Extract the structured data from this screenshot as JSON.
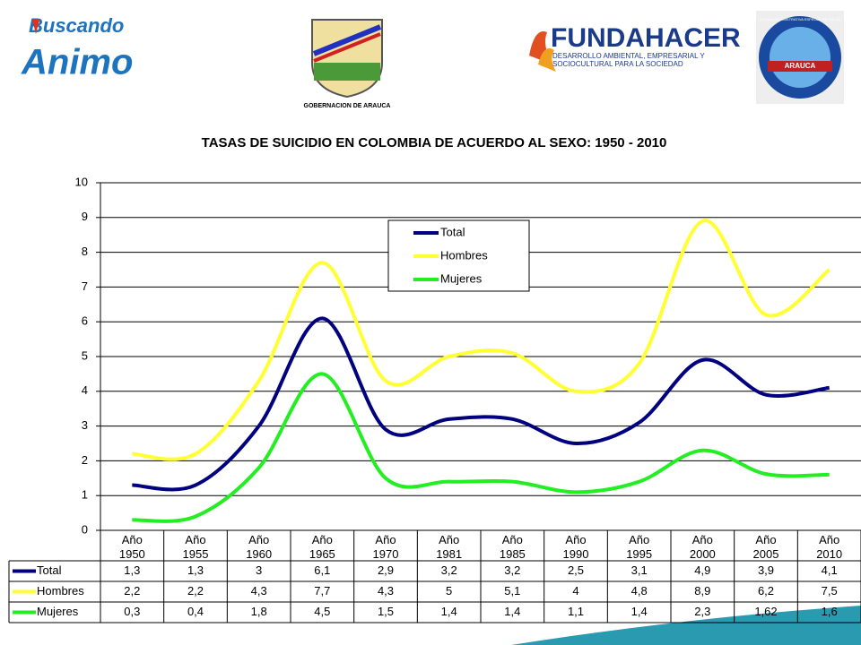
{
  "logos": {
    "left_top": "Buscando",
    "left_bottom": "Animo",
    "center_caption": "GOBERNACION DE ARAUCA",
    "fundahacer": "FUNDAHACER",
    "fundahacer_sub1": "DESARROLLO AMBIENTAL, EMPRESARIAL Y",
    "fundahacer_sub2": "SOCIOCULTURAL PARA LA SOCIEDAD",
    "right_ring": "UNIDAD ADMINISTRATIVA ESPECIAL DE SALUD",
    "right_band": "ARAUCA"
  },
  "chart_data": {
    "type": "line",
    "smooth": true,
    "title": "TASAS DE SUICIDIO EN COLOMBIA DE ACUERDO AL SEXO: 1950 - 2010",
    "categories": [
      "Año 1950",
      "Año 1955",
      "Año 1960",
      "Año 1965",
      "Año 1970",
      "Año 1981",
      "Año 1985",
      "Año 1990",
      "Año 1995",
      "Año 2000",
      "Año 2005",
      "Año 2010"
    ],
    "series": [
      {
        "name": "Total",
        "color": "#000080",
        "values": [
          1.3,
          1.3,
          3,
          6.1,
          2.9,
          3.2,
          3.2,
          2.5,
          3.1,
          4.9,
          3.9,
          4.1
        ],
        "value_labels": [
          "1,3",
          "1,3",
          "3",
          "6,1",
          "2,9",
          "3,2",
          "3,2",
          "2,5",
          "3,1",
          "4,9",
          "3,9",
          "4,1"
        ]
      },
      {
        "name": "Hombres",
        "color": "#ffff33",
        "values": [
          2.2,
          2.2,
          4.3,
          7.7,
          4.3,
          5,
          5.1,
          4,
          4.8,
          8.9,
          6.2,
          7.5
        ],
        "value_labels": [
          "2,2",
          "2,2",
          "4,3",
          "7,7",
          "4,3",
          "5",
          "5,1",
          "4",
          "4,8",
          "8,9",
          "6,2",
          "7,5"
        ]
      },
      {
        "name": "Mujeres",
        "color": "#22ee22",
        "values": [
          0.3,
          0.4,
          1.8,
          4.5,
          1.5,
          1.4,
          1.4,
          1.1,
          1.4,
          2.3,
          1.62,
          1.6
        ],
        "value_labels": [
          "0,3",
          "0,4",
          "1,8",
          "4,5",
          "1,5",
          "1,4",
          "1,4",
          "1,1",
          "1,4",
          "2,3",
          "1,62",
          "1,6"
        ]
      }
    ],
    "ylim": [
      0,
      10
    ],
    "yticks": [
      0,
      1,
      2,
      3,
      4,
      5,
      6,
      7,
      8,
      9,
      10
    ],
    "grid": true,
    "legend": "upper center",
    "data_table": true
  }
}
